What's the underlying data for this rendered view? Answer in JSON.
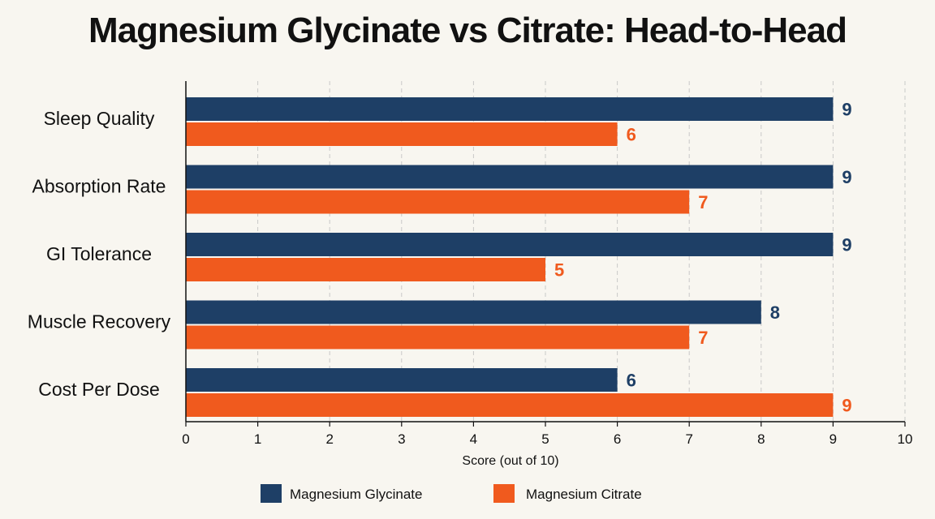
{
  "chart_data": {
    "type": "bar",
    "orientation": "horizontal",
    "title": "Magnesium Glycinate vs Citrate: Head-to-Head",
    "categories": [
      "Sleep Quality",
      "Absorption Rate",
      "GI Tolerance",
      "Muscle Recovery",
      "Cost Per Dose"
    ],
    "series": [
      {
        "name": "Magnesium Glycinate",
        "color": "#1e3f66",
        "values": [
          9,
          9,
          9,
          8,
          6
        ]
      },
      {
        "name": "Magnesium Citrate",
        "color": "#f05a1e",
        "values": [
          6,
          7,
          5,
          7,
          9
        ]
      }
    ],
    "xlabel": "Score (out of 10)",
    "xlim": [
      0,
      10
    ],
    "xticks": [
      "0",
      "1",
      "2",
      "3",
      "4",
      "5",
      "6",
      "7",
      "8",
      "9",
      "10"
    ],
    "grid": "vertical dashed",
    "legend_position": "bottom"
  }
}
